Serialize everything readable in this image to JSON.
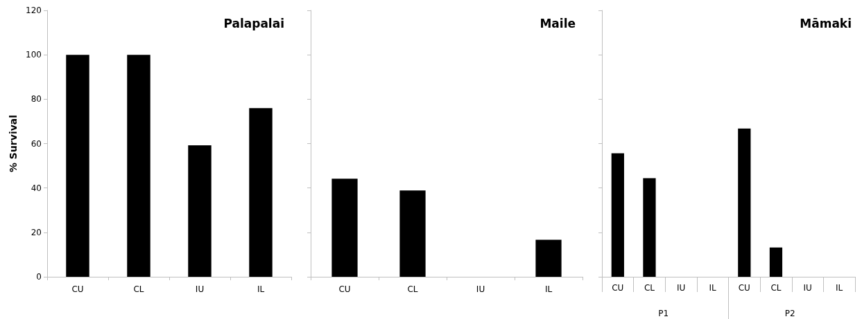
{
  "chart_data": [
    {
      "type": "bar",
      "title": "Palapalai",
      "ylabel": "% Survival",
      "categories": [
        "CU",
        "CL",
        "IU",
        "IL"
      ],
      "values": [
        100,
        100,
        59.2,
        76
      ],
      "color": "#000000",
      "ylim": [
        0,
        120
      ],
      "yticks": [
        0,
        20,
        40,
        60,
        80,
        100,
        120
      ],
      "grid": false
    },
    {
      "type": "bar",
      "title": "Maile",
      "categories": [
        "CU",
        "CL",
        "IU",
        "IL"
      ],
      "values": [
        44.2,
        38.9,
        0,
        16.7
      ],
      "color": "#000000",
      "ylim": [
        0,
        120
      ],
      "yticks": [
        0,
        20,
        40,
        60,
        80,
        100,
        120
      ],
      "grid": false,
      "tick_labels": "x"
    },
    {
      "type": "bar",
      "title": "Māmaki",
      "categories": [
        "CU",
        "CL",
        "IU",
        "IL",
        "CU",
        "CL",
        "IU",
        "IL"
      ],
      "values": [
        55.6,
        44.4,
        0,
        0,
        66.8,
        13.2,
        0,
        0
      ],
      "color": "#000000",
      "ylim": [
        0,
        120
      ],
      "yticks": [
        0,
        20,
        40,
        60,
        80,
        100,
        120
      ],
      "grid": false,
      "tick_labels": "x",
      "annotations": [
        "P1",
        "P2"
      ]
    }
  ]
}
